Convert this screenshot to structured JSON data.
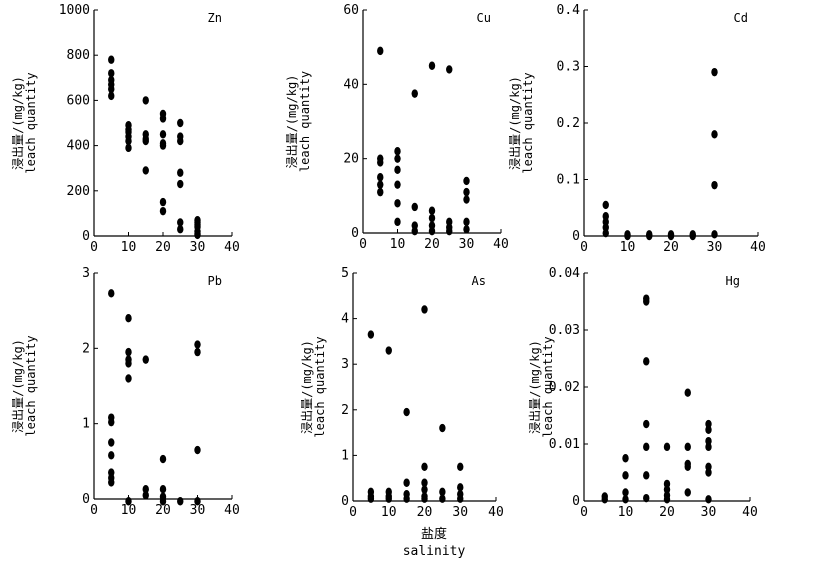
{
  "figure": {
    "xlabel_cn": "盐度",
    "xlabel_en": "salinity",
    "ylabel_cn": "浸出量/(mg/kg)",
    "ylabel_en": "leach quantity"
  },
  "chart_data": [
    {
      "type": "scatter",
      "title": "Zn",
      "xlabel": "",
      "ylabel": "浸出量/(mg/kg) leach quantity",
      "xlim": [
        0,
        40
      ],
      "ylim": [
        0,
        1000
      ],
      "xticks": [
        0,
        10,
        20,
        30,
        40
      ],
      "yticks": [
        0,
        200,
        400,
        600,
        800,
        1000
      ],
      "x": [
        5,
        5,
        5,
        5,
        5,
        5,
        10,
        10,
        10,
        10,
        10,
        10,
        15,
        15,
        15,
        15,
        15,
        20,
        20,
        20,
        20,
        20,
        20,
        20,
        25,
        25,
        25,
        25,
        25,
        25,
        25,
        30,
        30,
        30,
        30,
        30,
        30,
        30
      ],
      "y": [
        780,
        720,
        690,
        670,
        650,
        620,
        490,
        470,
        460,
        440,
        420,
        390,
        600,
        450,
        430,
        420,
        290,
        540,
        520,
        450,
        410,
        400,
        150,
        110,
        500,
        440,
        420,
        280,
        230,
        60,
        30,
        70,
        60,
        50,
        40,
        20,
        10,
        5
      ]
    },
    {
      "type": "scatter",
      "title": "Cu",
      "xlabel": "",
      "ylabel": "浸出量/(mg/kg) leach quantity",
      "xlim": [
        0,
        40
      ],
      "ylim": [
        0,
        60
      ],
      "xticks": [
        0,
        10,
        20,
        30,
        40
      ],
      "yticks": [
        0,
        20,
        40,
        60
      ],
      "x": [
        5,
        5,
        5,
        5,
        5,
        5,
        10,
        10,
        10,
        10,
        10,
        10,
        15,
        15,
        15,
        15,
        20,
        20,
        20,
        20,
        20,
        25,
        25,
        25,
        25,
        30,
        30,
        30,
        30,
        30
      ],
      "y": [
        49,
        20,
        19,
        15,
        13,
        11,
        22,
        20,
        17,
        13,
        8,
        3,
        37.5,
        7,
        2,
        0.5,
        45,
        6,
        4,
        2,
        0.5,
        44,
        3,
        1.5,
        0.5,
        14,
        11,
        9,
        3,
        1
      ]
    },
    {
      "type": "scatter",
      "title": "Cd",
      "xlabel": "",
      "ylabel": "浸出量/(mg/kg) leach quantity",
      "xlim": [
        0,
        40
      ],
      "ylim": [
        0,
        0.4
      ],
      "xticks": [
        0,
        10,
        20,
        30,
        40
      ],
      "yticks": [
        0,
        0.1,
        0.2,
        0.3,
        0.4
      ],
      "x": [
        5,
        5,
        5,
        5,
        5,
        10,
        10,
        15,
        15,
        20,
        20,
        25,
        25,
        30,
        30,
        30,
        30
      ],
      "y": [
        0.055,
        0.035,
        0.025,
        0.015,
        0.005,
        0.003,
        0.0,
        0.003,
        0.0,
        0.003,
        0.0,
        0.003,
        0.0,
        0.29,
        0.18,
        0.09,
        0.003
      ]
    },
    {
      "type": "scatter",
      "title": "Pb",
      "xlabel": "",
      "ylabel": "浸出量/(mg/kg) leach quantity",
      "xlim": [
        0,
        40
      ],
      "ylim": [
        0,
        3
      ],
      "xticks": [
        0,
        10,
        20,
        30,
        40
      ],
      "yticks": [
        0,
        1,
        2,
        3
      ],
      "x": [
        5,
        5,
        5,
        5,
        5,
        5,
        5,
        5,
        10,
        10,
        10,
        10,
        10,
        10,
        15,
        15,
        15,
        20,
        20,
        20,
        20,
        25,
        30,
        30,
        30,
        30
      ],
      "y": [
        2.73,
        1.08,
        1.02,
        0.75,
        0.58,
        0.35,
        0.28,
        0.22,
        2.4,
        1.95,
        1.85,
        1.8,
        1.6,
        -0.03,
        1.85,
        0.13,
        0.05,
        0.53,
        0.13,
        0.03,
        -0.03,
        -0.03,
        2.05,
        1.95,
        0.65,
        -0.03
      ]
    },
    {
      "type": "scatter",
      "title": "As",
      "xlabel": "",
      "ylabel": "浸出量/(mg/kg) leach quantity",
      "xlim": [
        0,
        40
      ],
      "ylim": [
        0,
        5
      ],
      "xticks": [
        0,
        10,
        20,
        30,
        40
      ],
      "yticks": [
        0,
        1,
        2,
        3,
        4,
        5
      ],
      "x": [
        5,
        5,
        5,
        5,
        10,
        10,
        10,
        10,
        15,
        15,
        15,
        15,
        20,
        20,
        20,
        20,
        20,
        20,
        25,
        25,
        25,
        30,
        30,
        30,
        30
      ],
      "y": [
        3.65,
        0.2,
        0.1,
        0.05,
        3.3,
        0.2,
        0.1,
        0.05,
        1.95,
        0.4,
        0.15,
        0.05,
        4.2,
        0.75,
        0.4,
        0.25,
        0.1,
        0.05,
        1.6,
        0.2,
        0.05,
        0.75,
        0.3,
        0.15,
        0.05
      ]
    },
    {
      "type": "scatter",
      "title": "Hg",
      "xlabel": "",
      "ylabel": "浸出量/(mg/kg) leach quantity",
      "xlim": [
        0,
        40
      ],
      "ylim": [
        0,
        0.04
      ],
      "xticks": [
        0,
        10,
        20,
        30,
        40
      ],
      "yticks": [
        0,
        0.01,
        0.02,
        0.03,
        0.04
      ],
      "x": [
        5,
        5,
        10,
        10,
        10,
        10,
        15,
        15,
        15,
        15,
        15,
        15,
        15,
        20,
        20,
        20,
        20,
        20,
        25,
        25,
        25,
        25,
        25,
        30,
        30,
        30,
        30,
        30,
        30,
        30
      ],
      "y": [
        0.0008,
        0.0003,
        0.0075,
        0.0045,
        0.0015,
        0.0003,
        0.0355,
        0.035,
        0.0245,
        0.0135,
        0.0095,
        0.0045,
        0.0005,
        0.0095,
        0.003,
        0.002,
        0.001,
        0.0003,
        0.019,
        0.0095,
        0.0065,
        0.006,
        0.0015,
        0.0135,
        0.0125,
        0.0105,
        0.0095,
        0.006,
        0.005,
        0.0003
      ]
    }
  ]
}
